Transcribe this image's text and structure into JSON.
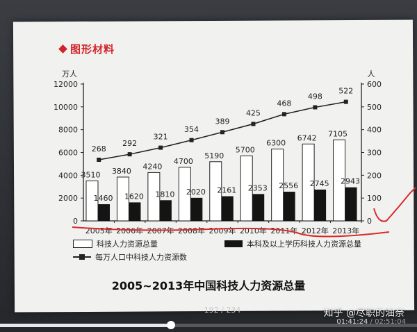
{
  "section_header": "图形材料",
  "chart_data": {
    "type": "bar",
    "title": "2005~2013年中国科技人力资源总量",
    "categories": [
      "2005年",
      "2006年",
      "2007年",
      "2008年",
      "2009年",
      "2010年",
      "2011年",
      "2012年",
      "2013年"
    ],
    "left_axis": {
      "unit": "万人",
      "ticks": [
        "12000",
        "10000",
        "8000",
        "6000",
        "4000",
        "2000",
        "0"
      ],
      "ylim": [
        0,
        12000
      ]
    },
    "right_axis": {
      "unit": "人",
      "ticks": [
        "600",
        "500",
        "400",
        "300",
        "200",
        "100",
        "0"
      ],
      "ylim": [
        0,
        600
      ]
    },
    "series": [
      {
        "name": "科技人力资源总量",
        "type": "bar",
        "axis": "left",
        "color": "#ffffff",
        "values": [
          3510,
          3840,
          4240,
          4700,
          5190,
          5700,
          6300,
          6742,
          7105
        ]
      },
      {
        "name": "本科及以上学历科技人力资源总量",
        "type": "bar",
        "axis": "left",
        "color": "#141414",
        "values": [
          1460,
          1620,
          1810,
          2020,
          2161,
          2353,
          2556,
          2745,
          2943
        ]
      },
      {
        "name": "每万人口中科技人力资源数",
        "type": "line",
        "axis": "right",
        "color": "#222222",
        "values": [
          268,
          292,
          321,
          354,
          389,
          425,
          468,
          498,
          522
        ]
      }
    ],
    "labels": {
      "total": [
        "3510",
        "3840",
        "4240",
        "4700",
        "5190",
        "5700",
        "6300",
        "6742",
        "7105"
      ],
      "bachelor": [
        "1460",
        "1620",
        "1810",
        "2020",
        "2161",
        "2353",
        "2556",
        "2745",
        "2943"
      ],
      "per_10k": [
        "268",
        "292",
        "321",
        "354",
        "389",
        "425",
        "468",
        "498",
        "522"
      ]
    },
    "grid": false,
    "legend_position": "bottom"
  },
  "player": {
    "page_counter": "192 / 234",
    "watermark": "知乎 @尽职的油奈",
    "current_time": "01:41:24",
    "total_time": "02:51:04",
    "progress": 0.41
  },
  "colors": {
    "header_red": "#d1242a",
    "annotation_red": "#d92a2a"
  }
}
